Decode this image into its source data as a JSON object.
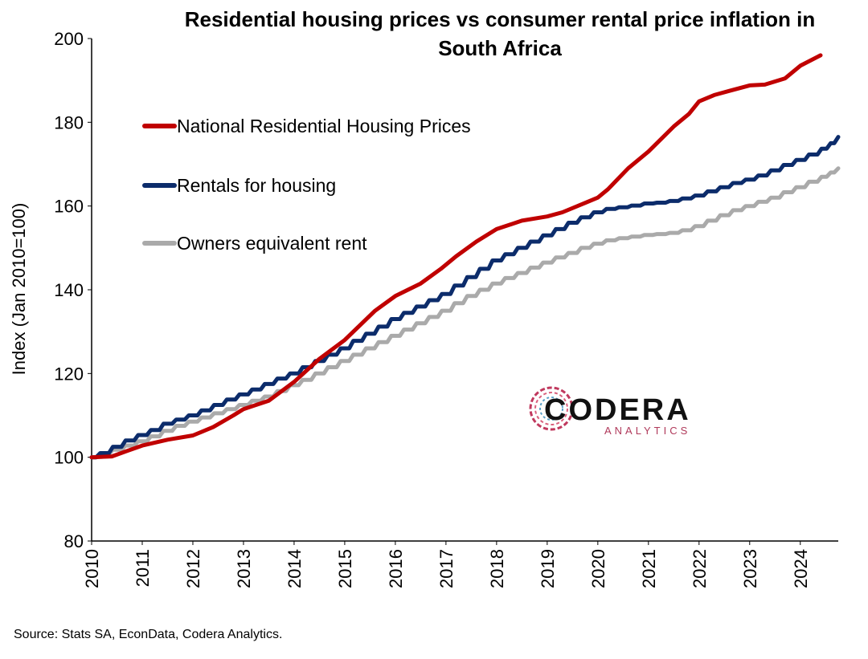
{
  "chart_data": {
    "type": "line",
    "title_lines": [
      "Residential housing prices vs consumer rental price inflation in",
      "South Africa"
    ],
    "ylabel": "Index (Jan 2010=100)",
    "xlabel": "",
    "ylim": [
      80,
      200
    ],
    "yticks": [
      "80",
      "100",
      "120",
      "140",
      "160",
      "180",
      "200"
    ],
    "xlim": [
      2010,
      2024.75
    ],
    "xticks": [
      "2010",
      "2011",
      "2012",
      "2013",
      "2014",
      "2015",
      "2016",
      "2017",
      "2018",
      "2019",
      "2020",
      "2021",
      "2022",
      "2023",
      "2024"
    ],
    "grid": false,
    "legend_position": "top-left",
    "series": [
      {
        "name": "National Residential Housing Prices",
        "color": "#c00000",
        "step": false,
        "points": [
          [
            2010,
            100
          ],
          [
            2010.4,
            100.2
          ],
          [
            2010.7,
            101.5
          ],
          [
            2011,
            102.8
          ],
          [
            2011.5,
            104.2
          ],
          [
            2012,
            105.2
          ],
          [
            2012.4,
            107.2
          ],
          [
            2012.8,
            110
          ],
          [
            2013,
            111.5
          ],
          [
            2013.5,
            113.5
          ],
          [
            2014,
            118
          ],
          [
            2014.5,
            123.5
          ],
          [
            2015,
            128
          ],
          [
            2015.3,
            131.5
          ],
          [
            2015.6,
            135
          ],
          [
            2016,
            138.5
          ],
          [
            2016.5,
            141.5
          ],
          [
            2016.9,
            145
          ],
          [
            2017.2,
            148
          ],
          [
            2017.6,
            151.5
          ],
          [
            2018,
            154.5
          ],
          [
            2018.5,
            156.5
          ],
          [
            2019,
            157.5
          ],
          [
            2019.3,
            158.5
          ],
          [
            2019.7,
            160.5
          ],
          [
            2020,
            162
          ],
          [
            2020.2,
            164
          ],
          [
            2020.6,
            169
          ],
          [
            2021,
            173
          ],
          [
            2021.5,
            179
          ],
          [
            2021.8,
            182
          ],
          [
            2022,
            185
          ],
          [
            2022.3,
            186.5
          ],
          [
            2022.6,
            187.5
          ],
          [
            2023,
            188.8
          ],
          [
            2023.3,
            189
          ],
          [
            2023.7,
            190.5
          ],
          [
            2024,
            193.5
          ],
          [
            2024.4,
            196
          ]
        ]
      },
      {
        "name": "Rentals for housing",
        "color": "#0c2c6b",
        "step": true,
        "points": [
          [
            2010,
            100
          ],
          [
            2010.17,
            101
          ],
          [
            2010.42,
            102.5
          ],
          [
            2010.67,
            104
          ],
          [
            2010.92,
            105.3
          ],
          [
            2011.17,
            106.5
          ],
          [
            2011.42,
            108
          ],
          [
            2011.67,
            109
          ],
          [
            2011.92,
            110
          ],
          [
            2012.17,
            111.2
          ],
          [
            2012.42,
            112.5
          ],
          [
            2012.67,
            113.8
          ],
          [
            2012.92,
            115
          ],
          [
            2013.17,
            116.2
          ],
          [
            2013.42,
            117.5
          ],
          [
            2013.67,
            118.8
          ],
          [
            2013.92,
            120
          ],
          [
            2014.17,
            121.5
          ],
          [
            2014.42,
            123
          ],
          [
            2014.67,
            124.5
          ],
          [
            2014.92,
            126
          ],
          [
            2015.17,
            127.8
          ],
          [
            2015.42,
            129.5
          ],
          [
            2015.67,
            131.2
          ],
          [
            2015.92,
            133
          ],
          [
            2016.17,
            134.5
          ],
          [
            2016.42,
            136
          ],
          [
            2016.67,
            137.5
          ],
          [
            2016.92,
            139
          ],
          [
            2017.17,
            141
          ],
          [
            2017.42,
            143
          ],
          [
            2017.67,
            145
          ],
          [
            2017.92,
            147
          ],
          [
            2018.17,
            148.5
          ],
          [
            2018.42,
            150
          ],
          [
            2018.67,
            151.5
          ],
          [
            2018.92,
            153
          ],
          [
            2019.17,
            154.5
          ],
          [
            2019.42,
            156
          ],
          [
            2019.67,
            157.3
          ],
          [
            2019.92,
            158.5
          ],
          [
            2020.17,
            159.3
          ],
          [
            2020.42,
            159.7
          ],
          [
            2020.67,
            160.1
          ],
          [
            2020.92,
            160.6
          ],
          [
            2021.17,
            160.8
          ],
          [
            2021.42,
            161.2
          ],
          [
            2021.67,
            161.8
          ],
          [
            2021.92,
            162.5
          ],
          [
            2022.17,
            163.5
          ],
          [
            2022.42,
            164.5
          ],
          [
            2022.67,
            165.5
          ],
          [
            2022.92,
            166.3
          ],
          [
            2023.17,
            167.3
          ],
          [
            2023.42,
            168.5
          ],
          [
            2023.67,
            169.8
          ],
          [
            2023.92,
            171
          ],
          [
            2024.17,
            172.3
          ],
          [
            2024.42,
            173.7
          ],
          [
            2024.6,
            175
          ],
          [
            2024.75,
            176.5
          ]
        ]
      },
      {
        "name": "Owners equivalent rent",
        "color": "#aaaaaa",
        "step": true,
        "points": [
          [
            2010,
            100
          ],
          [
            2010.17,
            100.8
          ],
          [
            2010.42,
            101.8
          ],
          [
            2010.67,
            102.8
          ],
          [
            2010.92,
            103.8
          ],
          [
            2011.17,
            105
          ],
          [
            2011.42,
            106.3
          ],
          [
            2011.67,
            107.5
          ],
          [
            2011.92,
            108.5
          ],
          [
            2012.17,
            109.5
          ],
          [
            2012.42,
            110.5
          ],
          [
            2012.67,
            111.5
          ],
          [
            2012.92,
            112.5
          ],
          [
            2013.17,
            113.5
          ],
          [
            2013.42,
            114.5
          ],
          [
            2013.67,
            115.8
          ],
          [
            2013.92,
            117.2
          ],
          [
            2014.17,
            118.5
          ],
          [
            2014.42,
            120
          ],
          [
            2014.67,
            121.5
          ],
          [
            2014.92,
            123
          ],
          [
            2015.17,
            124.5
          ],
          [
            2015.42,
            126
          ],
          [
            2015.67,
            127.5
          ],
          [
            2015.92,
            129
          ],
          [
            2016.17,
            130.5
          ],
          [
            2016.42,
            132
          ],
          [
            2016.67,
            133.5
          ],
          [
            2016.92,
            135
          ],
          [
            2017.17,
            136.8
          ],
          [
            2017.42,
            138.5
          ],
          [
            2017.67,
            140
          ],
          [
            2017.92,
            141.5
          ],
          [
            2018.17,
            142.8
          ],
          [
            2018.42,
            144
          ],
          [
            2018.67,
            145.3
          ],
          [
            2018.92,
            146.5
          ],
          [
            2019.17,
            147.7
          ],
          [
            2019.42,
            148.8
          ],
          [
            2019.67,
            150
          ],
          [
            2019.92,
            151
          ],
          [
            2020.17,
            151.8
          ],
          [
            2020.42,
            152.3
          ],
          [
            2020.67,
            152.7
          ],
          [
            2020.92,
            153.1
          ],
          [
            2021.17,
            153.3
          ],
          [
            2021.42,
            153.6
          ],
          [
            2021.67,
            154.2
          ],
          [
            2021.92,
            155.2
          ],
          [
            2022.17,
            156.5
          ],
          [
            2022.42,
            157.8
          ],
          [
            2022.67,
            159
          ],
          [
            2022.92,
            160
          ],
          [
            2023.17,
            161
          ],
          [
            2023.42,
            162
          ],
          [
            2023.67,
            163.3
          ],
          [
            2023.92,
            164.5
          ],
          [
            2024.17,
            165.8
          ],
          [
            2024.42,
            167
          ],
          [
            2024.6,
            168
          ],
          [
            2024.75,
            169
          ]
        ]
      }
    ]
  },
  "logo": {
    "main": "CODERA",
    "sub": "ANALYTICS"
  },
  "source": "Source: Stats SA, EconData, Codera Analytics."
}
